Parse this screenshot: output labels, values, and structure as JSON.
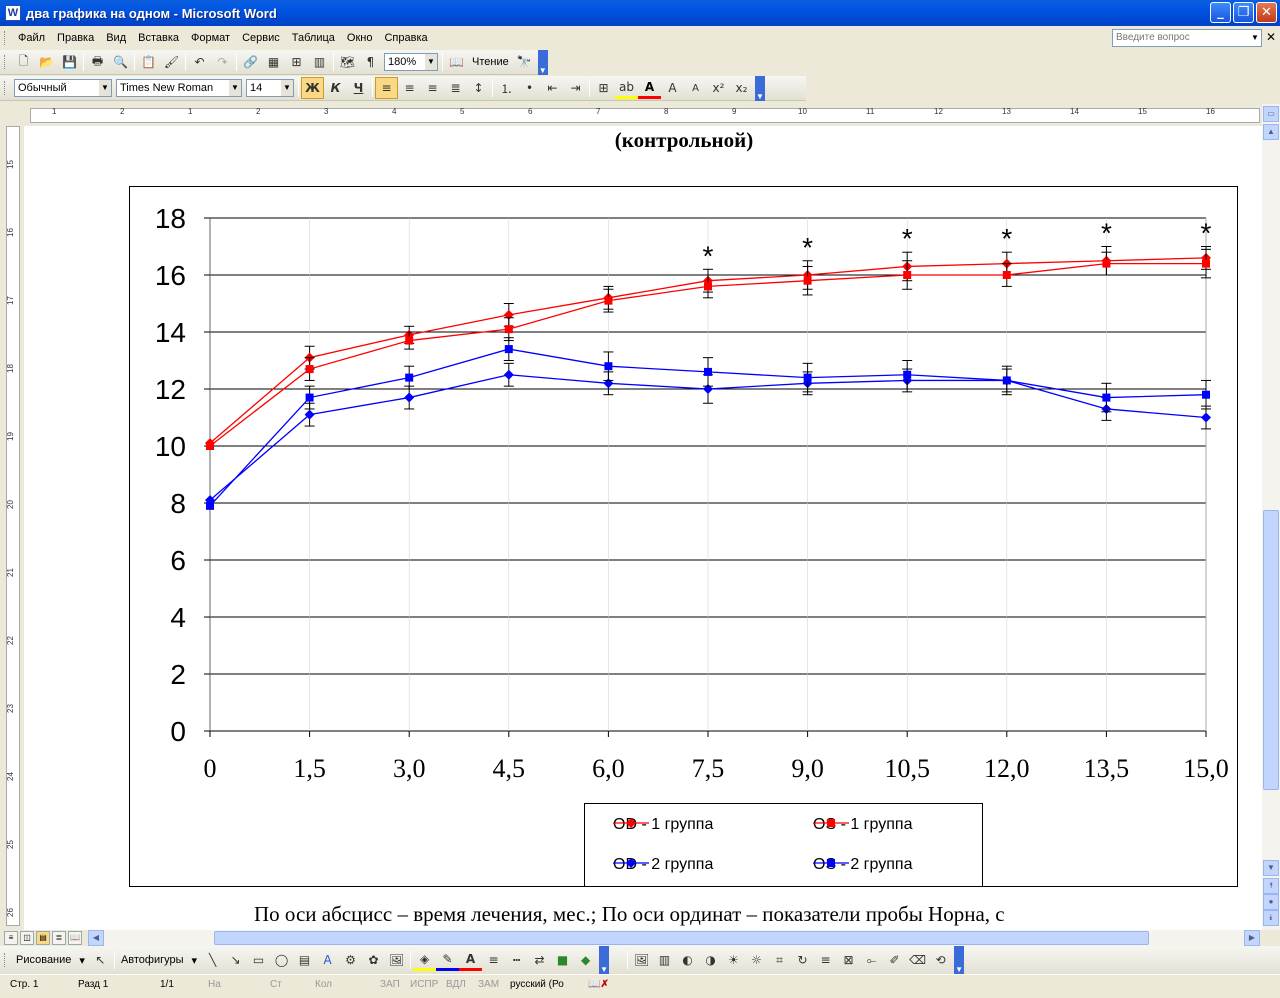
{
  "window": {
    "title": "два графика на одном - Microsoft Word"
  },
  "menu": [
    "Файл",
    "Правка",
    "Вид",
    "Вставка",
    "Формат",
    "Сервис",
    "Таблица",
    "Окно",
    "Справка"
  ],
  "help_box": {
    "placeholder": "Введите вопрос"
  },
  "standard_toolbar": {
    "zoom": "180%",
    "reading_label": "Чтение"
  },
  "format_toolbar": {
    "style": "Обычный",
    "font": "Times New Roman",
    "size": "14",
    "bold": "Ж",
    "italic": "К",
    "underline": "Ч"
  },
  "ruler": {
    "h_numbers": [
      "1",
      "2",
      "1",
      "2",
      "3",
      "4",
      "5",
      "6",
      "7",
      "8",
      "9",
      "10",
      "11",
      "12",
      "13",
      "14",
      "15",
      "16"
    ],
    "v_numbers": [
      "15",
      "16",
      "17",
      "18",
      "19",
      "20",
      "21",
      "22",
      "23",
      "24",
      "25",
      "26"
    ]
  },
  "document": {
    "heading": "(контрольной)",
    "caption": "По оси абсцисс – время лечения, мес.; По оси ординат – показатели пробы Норна, с"
  },
  "chart_data": {
    "type": "line",
    "categories": [
      "0",
      "1,5",
      "3,0",
      "4,5",
      "6,0",
      "7,5",
      "9,0",
      "10,5",
      "12,0",
      "13,5",
      "15,0"
    ],
    "ylim": [
      0,
      18
    ],
    "yticks": [
      "0",
      "2",
      "4",
      "6",
      "8",
      "10",
      "12",
      "14",
      "16",
      "18"
    ],
    "grid": true,
    "legend_position": "bottom",
    "significance_marker": "*",
    "significance_at": [
      5,
      6,
      7,
      8,
      9,
      10
    ],
    "colors": {
      "red": "#ff0000",
      "blue": "#0000ff"
    },
    "series": [
      {
        "name": "OD - 1 группа",
        "marker": "diamond",
        "color": "#ff0000",
        "values": [
          10.1,
          13.1,
          13.9,
          14.6,
          15.2,
          15.8,
          16.0,
          16.3,
          16.4,
          16.5,
          16.6
        ],
        "errors": [
          0.0,
          0.4,
          0.3,
          0.4,
          0.4,
          0.4,
          0.5,
          0.5,
          0.4,
          0.5,
          0.4
        ]
      },
      {
        "name": "OS - 1 группа",
        "marker": "square",
        "color": "#ff0000",
        "values": [
          10.0,
          12.7,
          13.7,
          14.1,
          15.1,
          15.6,
          15.8,
          16.0,
          16.0,
          16.4,
          16.4
        ],
        "errors": [
          0.0,
          0.4,
          0.3,
          0.4,
          0.4,
          0.4,
          0.5,
          0.5,
          0.4,
          0.4,
          0.5
        ]
      },
      {
        "name": "OD - 2 группа",
        "marker": "diamond",
        "color": "#0000ff",
        "values": [
          8.1,
          11.1,
          11.7,
          12.5,
          12.2,
          12.0,
          12.2,
          12.3,
          12.3,
          11.3,
          11.0
        ],
        "errors": [
          0.0,
          0.4,
          0.4,
          0.4,
          0.4,
          0.5,
          0.4,
          0.4,
          0.4,
          0.4,
          0.4
        ]
      },
      {
        "name": "OS - 2 группа",
        "marker": "square",
        "color": "#0000ff",
        "values": [
          7.9,
          11.7,
          12.4,
          13.4,
          12.8,
          12.6,
          12.4,
          12.5,
          12.3,
          11.7,
          11.8
        ],
        "errors": [
          0.0,
          0.4,
          0.4,
          0.4,
          0.5,
          0.5,
          0.5,
          0.5,
          0.5,
          0.5,
          0.5
        ]
      }
    ]
  },
  "drawing_toolbar": {
    "drawing": "Рисование",
    "autoshapes": "Автофигуры"
  },
  "status": {
    "page": "Стр. 1",
    "section": "Разд 1",
    "pages": "1/1",
    "at": "На",
    "line": "Ст",
    "col": "Кол",
    "rec": "ЗАП",
    "trk": "ИСПР",
    "ext": "ВДЛ",
    "ovr": "ЗАМ",
    "lang": "русский (Ро"
  }
}
